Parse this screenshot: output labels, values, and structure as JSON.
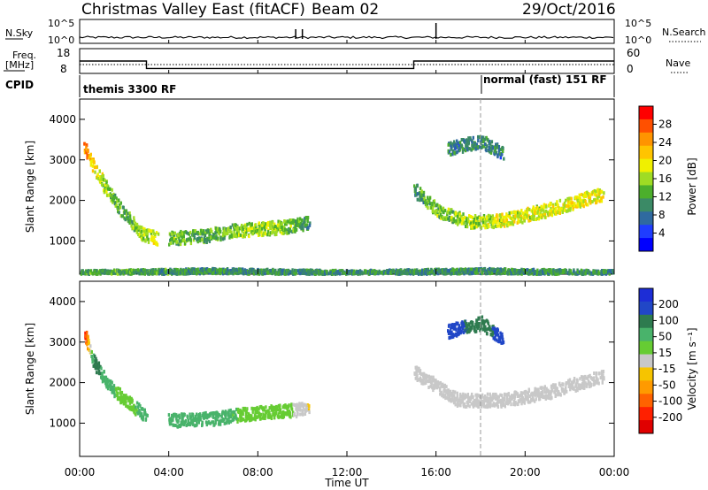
{
  "header": {
    "title": "Christmas Valley East (fitACF)",
    "beam": "Beam 02",
    "date": "29/Oct/2016"
  },
  "params": {
    "nsky_label": "N.Sky",
    "nsearch_label": "N.Search",
    "nsky_ticks": [
      "10^5",
      "10^0"
    ],
    "nsky_ticks_right": [
      "10^5",
      "10^0"
    ],
    "freq_label_1": "Freq.",
    "freq_label_2": "[MHz]",
    "freq_ticks": [
      "18",
      "8"
    ],
    "nave_label": "Nave",
    "nave_ticks": [
      "60",
      "0"
    ],
    "cpid_label": "CPID",
    "cpid_left": "themis 3300 RF",
    "cpid_right": "normal (fast) 151 RF"
  },
  "panels": {
    "power": {
      "ylabel": "Slant Range [km]",
      "yticks": [
        "4000",
        "3000",
        "2000",
        "1000"
      ],
      "cbar_label": "Power [dB]",
      "cbar_ticks": [
        "28",
        "24",
        "20",
        "16",
        "12",
        "8",
        "4"
      ],
      "cbar_colors": [
        "#ff0000",
        "#ff5000",
        "#ff9400",
        "#ffc400",
        "#f0f000",
        "#9fdc24",
        "#4caf2c",
        "#3b8a66",
        "#2f6aa0",
        "#1f3dff",
        "#0000ff"
      ]
    },
    "velocity": {
      "ylabel": "Slant Range [km]",
      "yticks": [
        "4000",
        "3000",
        "2000",
        "1000"
      ],
      "cbar_label": "Velocity [m s⁻¹]",
      "cbar_ticks": [
        "200",
        "100",
        "50",
        "15",
        "-15",
        "-50",
        "-100",
        "-200"
      ],
      "cbar_colors": [
        "#1d2dd6",
        "#2147c7",
        "#2e7b4f",
        "#49b36b",
        "#66cc33",
        "#c8c8c8",
        "#f6c400",
        "#ff9a00",
        "#ff6200",
        "#ff2000",
        "#e00000"
      ]
    }
  },
  "xaxis": {
    "label": "Time UT",
    "ticks": [
      "00:00",
      "04:00",
      "08:00",
      "12:00",
      "16:00",
      "20:00",
      "00:00"
    ]
  },
  "chart_data": {
    "type": "heatmap",
    "title": "Christmas Valley East (fitACF)",
    "xlabel": "Time UT",
    "ylabel": "Slant Range [km]",
    "x_range_hours": [
      0,
      24
    ],
    "y_range_km": [
      180,
      4500
    ],
    "cpid_change_hour": 18.0,
    "params": {
      "nsky": {
        "spikes": [
          {
            "hour": 9.7,
            "value": "high"
          },
          {
            "hour": 10.0,
            "value": "high"
          },
          {
            "hour": 16.0,
            "value": "very high"
          }
        ]
      },
      "frequency_mhz": [
        {
          "from": 0,
          "to": 3.0,
          "value": 13
        },
        {
          "from": 3.0,
          "to": 15.0,
          "value": 10
        },
        {
          "from": 15.0,
          "to": 24,
          "value": 13
        }
      ],
      "nave": [
        {
          "from": 0,
          "to": 24,
          "value": 20
        }
      ]
    },
    "power_series": [
      {
        "name": "echo_band_early",
        "points": [
          [
            0.2,
            3300,
            26
          ],
          [
            0.5,
            3000,
            22
          ],
          [
            0.9,
            2600,
            18
          ],
          [
            1.3,
            2200,
            14
          ],
          [
            2.0,
            1700,
            12
          ],
          [
            2.8,
            1200,
            16
          ],
          [
            3.5,
            1100,
            18
          ]
        ]
      },
      {
        "name": "echo_band_mid",
        "points": [
          [
            4.0,
            1100,
            14
          ],
          [
            5.5,
            1150,
            12
          ],
          [
            7.0,
            1300,
            14
          ],
          [
            8.5,
            1350,
            16
          ],
          [
            9.5,
            1400,
            14
          ],
          [
            10.3,
            1500,
            10
          ]
        ]
      },
      {
        "name": "echo_band_late",
        "points": [
          [
            15.0,
            2300,
            10
          ],
          [
            16.0,
            1800,
            14
          ],
          [
            17.5,
            1500,
            16
          ],
          [
            19.0,
            1550,
            18
          ],
          [
            21.0,
            1800,
            18
          ],
          [
            23.5,
            2200,
            20
          ]
        ]
      },
      {
        "name": "far_echo",
        "points": [
          [
            16.5,
            3300,
            8
          ],
          [
            18.0,
            3500,
            10
          ],
          [
            19.0,
            3200,
            8
          ]
        ]
      },
      {
        "name": "near_range_clutter",
        "points": [
          [
            0,
            250,
            12
          ],
          [
            6,
            300,
            10
          ],
          [
            12,
            250,
            10
          ],
          [
            18,
            300,
            10
          ],
          [
            24,
            250,
            10
          ]
        ]
      }
    ],
    "velocity_series": [
      {
        "name": "echo_band_early",
        "points": [
          [
            0.2,
            3200,
            -200
          ],
          [
            0.6,
            2600,
            150
          ],
          [
            1.2,
            2000,
            100
          ],
          [
            2.0,
            1600,
            50
          ],
          [
            3.0,
            1200,
            100
          ]
        ]
      },
      {
        "name": "echo_band_mid",
        "points": [
          [
            4.0,
            1100,
            100
          ],
          [
            6.0,
            1150,
            100
          ],
          [
            8.0,
            1300,
            50
          ],
          [
            9.5,
            1350,
            30
          ],
          [
            10.3,
            1400,
            -30
          ]
        ]
      },
      {
        "name": "echo_band_late",
        "points": [
          [
            15.0,
            2300,
            0
          ],
          [
            17.0,
            1600,
            0
          ],
          [
            19.0,
            1600,
            0
          ],
          [
            21.0,
            1800,
            0
          ],
          [
            23.5,
            2200,
            0
          ]
        ]
      },
      {
        "name": "far_echo",
        "points": [
          [
            16.5,
            3300,
            200
          ],
          [
            18.0,
            3500,
            150
          ],
          [
            19.0,
            3100,
            200
          ]
        ]
      }
    ]
  }
}
